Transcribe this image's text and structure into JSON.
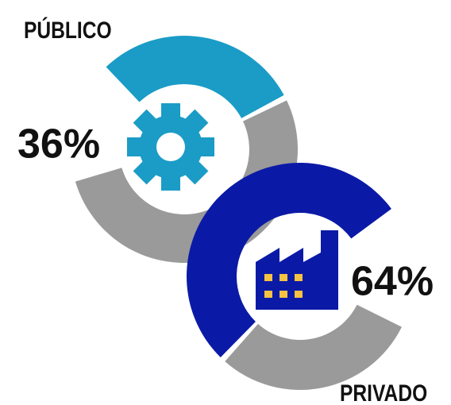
{
  "chart_data": [
    {
      "type": "donut",
      "title": "PÚBLICO",
      "values": [
        36
      ],
      "value_labels": [
        "36%"
      ],
      "color": "#1a9cc6",
      "rest_color": "#9a9a9a"
    },
    {
      "type": "donut",
      "title": "PRIVADO",
      "values": [
        64
      ],
      "value_labels": [
        "64%"
      ],
      "color": "#0b1aa6",
      "rest_color": "#9a9a9a"
    }
  ]
}
